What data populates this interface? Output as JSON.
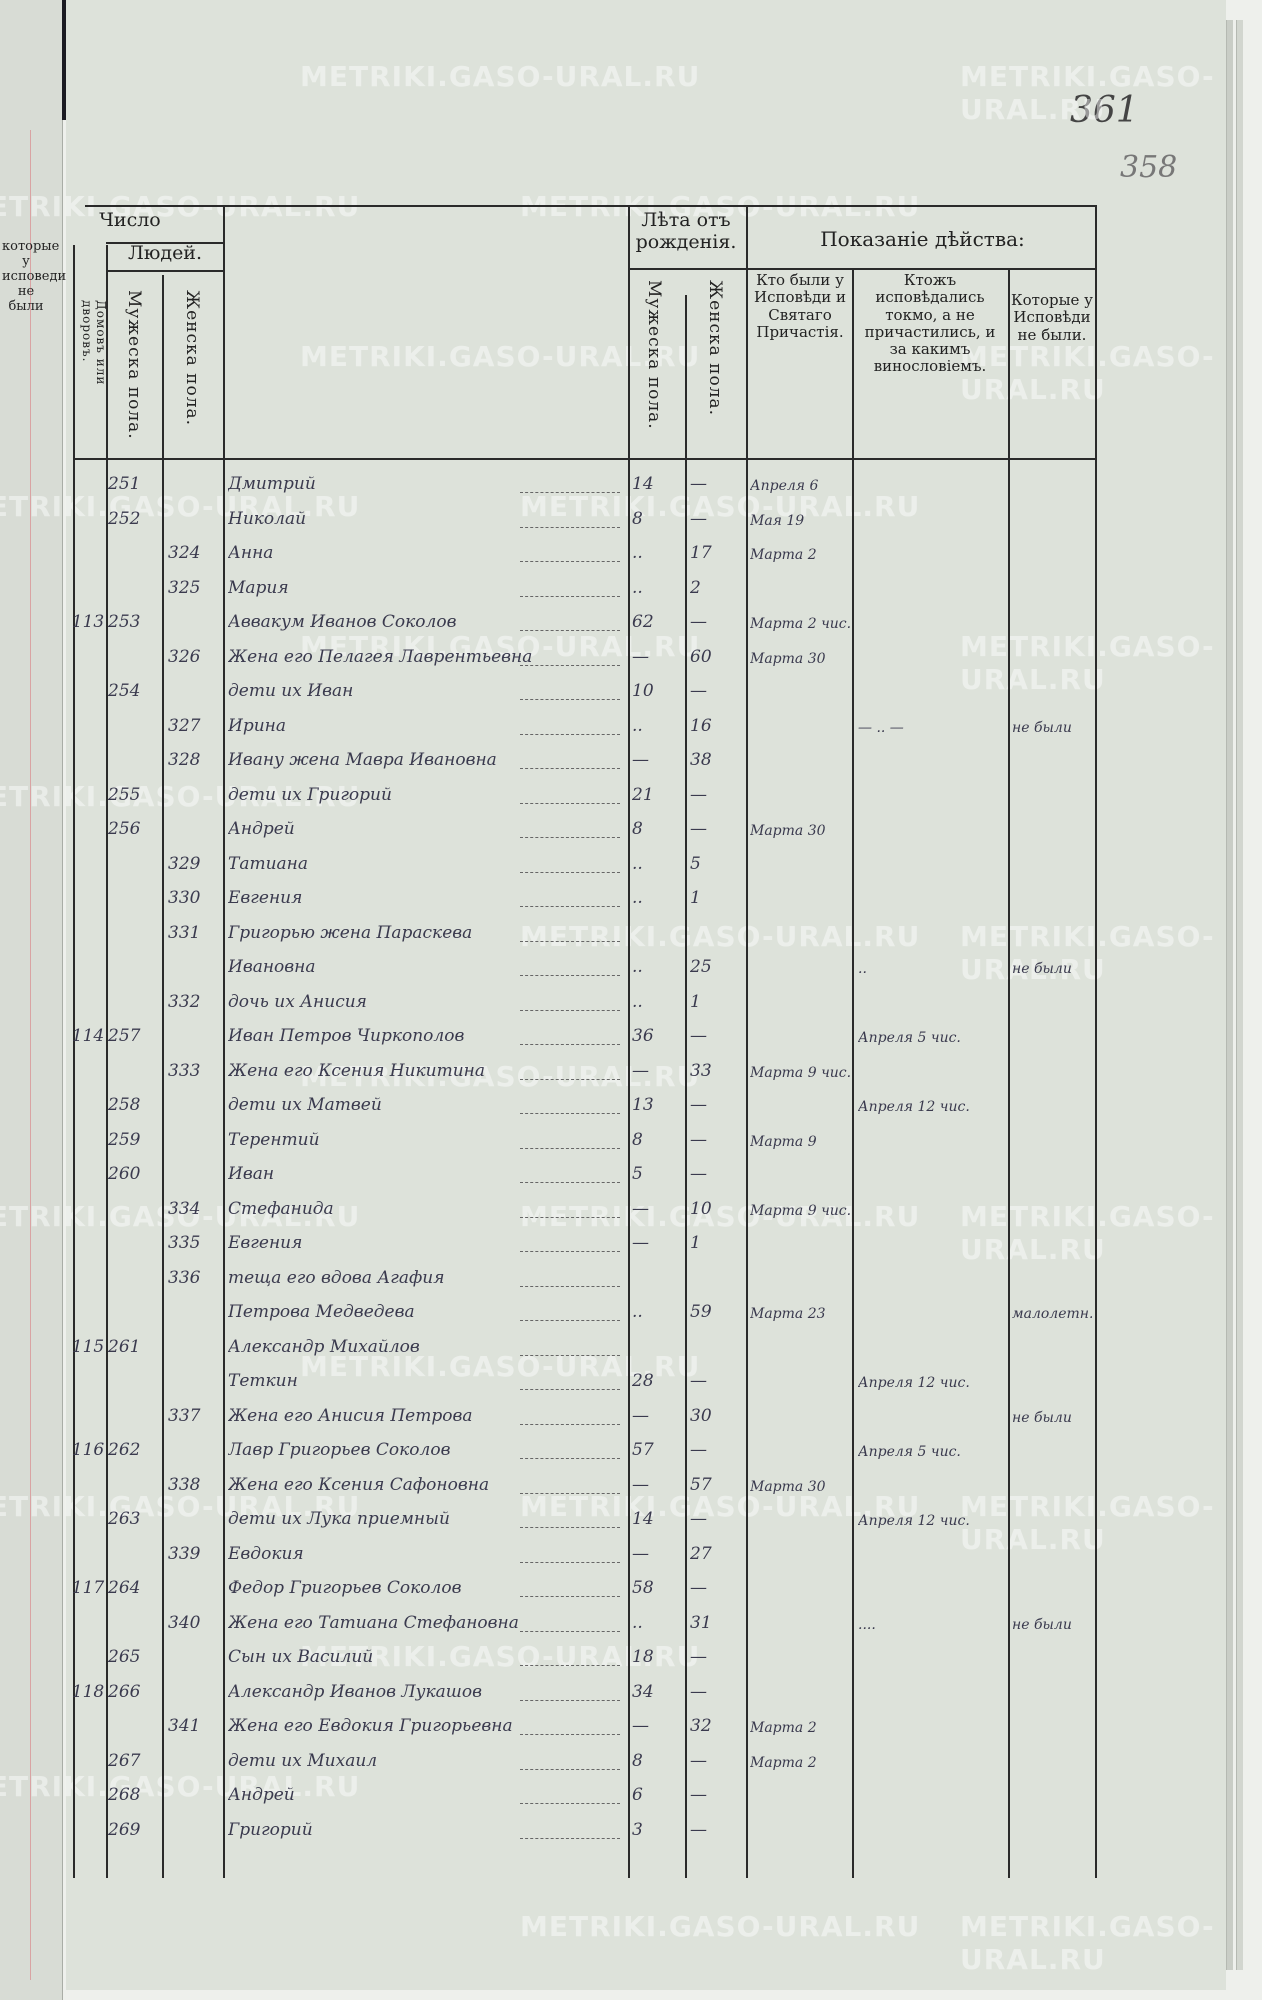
{
  "folio": {
    "page_number": "361",
    "old_page_number": "358"
  },
  "watermark": "METRIKI.GASO-URAL.RU",
  "left_page_fragment": {
    "header": "которые у исповеди не были"
  },
  "header": {
    "number_group": "Число",
    "people_group": "Людей.",
    "houses": "Домовъ или дворовъ.",
    "male_count": "Мужеска пола.",
    "female_count": "Женска пола.",
    "age_group": "Лѣта отъ рожденія.",
    "age_male": "Мужеска пола.",
    "age_female": "Женска пола.",
    "action_group": "Показаніе дѣйства:",
    "col_confessed": "Кто были у Исповѣди и Святаго Причастія.",
    "col_confessed_only": "Ктожъ исповѣдались токмо, а не причастились, и за какимъ винословіемъ.",
    "col_not_confessed": "Которые у Исповѣди не были."
  },
  "rows": [
    {
      "house": "",
      "male_no": "251",
      "female_no": "",
      "name": "Дмитрий",
      "age_m": "14",
      "age_f": "—",
      "confessed": "Апреля 6",
      "confessed_only": "",
      "not_confessed": ""
    },
    {
      "house": "",
      "male_no": "252",
      "female_no": "",
      "name": "Николай",
      "age_m": "8",
      "age_f": "—",
      "confessed": "Мая 19",
      "confessed_only": "",
      "not_confessed": ""
    },
    {
      "house": "",
      "male_no": "",
      "female_no": "324",
      "name": "Анна",
      "age_m": "..",
      "age_f": "17",
      "confessed": "Марта 2",
      "confessed_only": "",
      "not_confessed": ""
    },
    {
      "house": "",
      "male_no": "",
      "female_no": "325",
      "name": "Мария",
      "age_m": "..",
      "age_f": "2",
      "confessed": "",
      "confessed_only": "",
      "not_confessed": ""
    },
    {
      "house": "113",
      "male_no": "253",
      "female_no": "",
      "name": "Аввакум Иванов Соколов",
      "age_m": "62",
      "age_f": "—",
      "confessed": "Марта 2 чис.",
      "confessed_only": "",
      "not_confessed": ""
    },
    {
      "house": "",
      "male_no": "",
      "female_no": "326",
      "name": "Жена его Пелагея Лаврентьевна",
      "age_m": "—",
      "age_f": "60",
      "confessed": "Марта 30",
      "confessed_only": "",
      "not_confessed": ""
    },
    {
      "house": "",
      "male_no": "254",
      "female_no": "",
      "name": "дети их Иван",
      "age_m": "10",
      "age_f": "—",
      "confessed": "",
      "confessed_only": "",
      "not_confessed": ""
    },
    {
      "house": "",
      "male_no": "",
      "female_no": "327",
      "name": "Ирина",
      "age_m": "..",
      "age_f": "16",
      "confessed": "",
      "confessed_only": "— .. —",
      "not_confessed": "не были"
    },
    {
      "house": "",
      "male_no": "",
      "female_no": "328",
      "name": "Ивану жена Мавра Ивановна",
      "age_m": "—",
      "age_f": "38",
      "confessed": "",
      "confessed_only": "",
      "not_confessed": ""
    },
    {
      "house": "",
      "male_no": "255",
      "female_no": "",
      "name": "дети их Григорий",
      "age_m": "21",
      "age_f": "—",
      "confessed": "",
      "confessed_only": "",
      "not_confessed": ""
    },
    {
      "house": "",
      "male_no": "256",
      "female_no": "",
      "name": "Андрей",
      "age_m": "8",
      "age_f": "—",
      "confessed": "Марта 30",
      "confessed_only": "",
      "not_confessed": ""
    },
    {
      "house": "",
      "male_no": "",
      "female_no": "329",
      "name": "Татиана",
      "age_m": "..",
      "age_f": "5",
      "confessed": "",
      "confessed_only": "",
      "not_confessed": ""
    },
    {
      "house": "",
      "male_no": "",
      "female_no": "330",
      "name": "Евгения",
      "age_m": "..",
      "age_f": "1",
      "confessed": "",
      "confessed_only": "",
      "not_confessed": ""
    },
    {
      "house": "",
      "male_no": "",
      "female_no": "331",
      "name": "Григорью жена Параскева",
      "age_m": "",
      "age_f": "",
      "confessed": "",
      "confessed_only": "",
      "not_confessed": ""
    },
    {
      "house": "",
      "male_no": "",
      "female_no": "",
      "name": "Ивановна",
      "age_m": "..",
      "age_f": "25",
      "confessed": "",
      "confessed_only": "..",
      "not_confessed": "не были"
    },
    {
      "house": "",
      "male_no": "",
      "female_no": "332",
      "name": "дочь их Анисия",
      "age_m": "..",
      "age_f": "1",
      "confessed": "",
      "confessed_only": "",
      "not_confessed": ""
    },
    {
      "house": "114",
      "male_no": "257",
      "female_no": "",
      "name": "Иван Петров Чиркополов",
      "age_m": "36",
      "age_f": "—",
      "confessed": "",
      "confessed_only": "Апреля 5 чис.",
      "not_confessed": ""
    },
    {
      "house": "",
      "male_no": "",
      "female_no": "333",
      "name": "Жена его Ксения Никитина",
      "age_m": "—",
      "age_f": "33",
      "confessed": "Марта 9 чис.",
      "confessed_only": "",
      "not_confessed": ""
    },
    {
      "house": "",
      "male_no": "258",
      "female_no": "",
      "name": "дети их Матвей",
      "age_m": "13",
      "age_f": "—",
      "confessed": "",
      "confessed_only": "Апреля 12 чис.",
      "not_confessed": ""
    },
    {
      "house": "",
      "male_no": "259",
      "female_no": "",
      "name": "Терентий",
      "age_m": "8",
      "age_f": "—",
      "confessed": "Марта 9",
      "confessed_only": "",
      "not_confessed": ""
    },
    {
      "house": "",
      "male_no": "260",
      "female_no": "",
      "name": "Иван",
      "age_m": "5",
      "age_f": "—",
      "confessed": "",
      "confessed_only": "",
      "not_confessed": ""
    },
    {
      "house": "",
      "male_no": "",
      "female_no": "334",
      "name": "Стефанида",
      "age_m": "—",
      "age_f": "10",
      "confessed": "Марта 9 чис.",
      "confessed_only": "",
      "not_confessed": ""
    },
    {
      "house": "",
      "male_no": "",
      "female_no": "335",
      "name": "Евгения",
      "age_m": "—",
      "age_f": "1",
      "confessed": "",
      "confessed_only": "",
      "not_confessed": ""
    },
    {
      "house": "",
      "male_no": "",
      "female_no": "336",
      "name": "теща его вдова Агафия",
      "age_m": "",
      "age_f": "",
      "confessed": "",
      "confessed_only": "",
      "not_confessed": ""
    },
    {
      "house": "",
      "male_no": "",
      "female_no": "",
      "name": "Петрова Медведева",
      "age_m": "..",
      "age_f": "59",
      "confessed": "Марта 23",
      "confessed_only": "",
      "not_confessed": "малолетн."
    },
    {
      "house": "115",
      "male_no": "261",
      "female_no": "",
      "name": "Александр Михайлов",
      "age_m": "",
      "age_f": "",
      "confessed": "",
      "confessed_only": "",
      "not_confessed": ""
    },
    {
      "house": "",
      "male_no": "",
      "female_no": "",
      "name": "Теткин",
      "age_m": "28",
      "age_f": "—",
      "confessed": "",
      "confessed_only": "Апреля 12 чис.",
      "not_confessed": ""
    },
    {
      "house": "",
      "male_no": "",
      "female_no": "337",
      "name": "Жена его Анисия Петрова",
      "age_m": "—",
      "age_f": "30",
      "confessed": "",
      "confessed_only": "",
      "not_confessed": "не были"
    },
    {
      "house": "116",
      "male_no": "262",
      "female_no": "",
      "name": "Лавр Григорьев Соколов",
      "age_m": "57",
      "age_f": "—",
      "confessed": "",
      "confessed_only": "Апреля 5 чис.",
      "not_confessed": ""
    },
    {
      "house": "",
      "male_no": "",
      "female_no": "338",
      "name": "Жена его Ксения Сафоновна",
      "age_m": "—",
      "age_f": "57",
      "confessed": "Марта 30",
      "confessed_only": "",
      "not_confessed": ""
    },
    {
      "house": "",
      "male_no": "263",
      "female_no": "",
      "name": "дети их Лука приемный",
      "age_m": "14",
      "age_f": "—",
      "confessed": "",
      "confessed_only": "Апреля 12 чис.",
      "not_confessed": ""
    },
    {
      "house": "",
      "male_no": "",
      "female_no": "339",
      "name": "Евдокия",
      "age_m": "—",
      "age_f": "27",
      "confessed": "",
      "confessed_only": "",
      "not_confessed": ""
    },
    {
      "house": "117",
      "male_no": "264",
      "female_no": "",
      "name": "Федор Григорьев Соколов",
      "age_m": "58",
      "age_f": "—",
      "confessed": "",
      "confessed_only": "",
      "not_confessed": ""
    },
    {
      "house": "",
      "male_no": "",
      "female_no": "340",
      "name": "Жена его Татиана Стефановна",
      "age_m": "..",
      "age_f": "31",
      "confessed": "",
      "confessed_only": "....",
      "not_confessed": "не были"
    },
    {
      "house": "",
      "male_no": "265",
      "female_no": "",
      "name": "Сын их Василий",
      "age_m": "18",
      "age_f": "—",
      "confessed": "",
      "confessed_only": "",
      "not_confessed": ""
    },
    {
      "house": "118",
      "male_no": "266",
      "female_no": "",
      "name": "Александр Иванов Лукашов",
      "age_m": "34",
      "age_f": "—",
      "confessed": "",
      "confessed_only": "",
      "not_confessed": ""
    },
    {
      "house": "",
      "male_no": "",
      "female_no": "341",
      "name": "Жена его Евдокия Григорьевна",
      "age_m": "—",
      "age_f": "32",
      "confessed": "Марта 2",
      "confessed_only": "",
      "not_confessed": ""
    },
    {
      "house": "",
      "male_no": "267",
      "female_no": "",
      "name": "дети их Михаил",
      "age_m": "8",
      "age_f": "—",
      "confessed": "Марта 2",
      "confessed_only": "",
      "not_confessed": ""
    },
    {
      "house": "",
      "male_no": "268",
      "female_no": "",
      "name": "Андрей",
      "age_m": "6",
      "age_f": "—",
      "confessed": "",
      "confessed_only": "",
      "not_confessed": ""
    },
    {
      "house": "",
      "male_no": "269",
      "female_no": "",
      "name": "Григорий",
      "age_m": "3",
      "age_f": "—",
      "confessed": "",
      "confessed_only": "",
      "not_confessed": ""
    }
  ]
}
